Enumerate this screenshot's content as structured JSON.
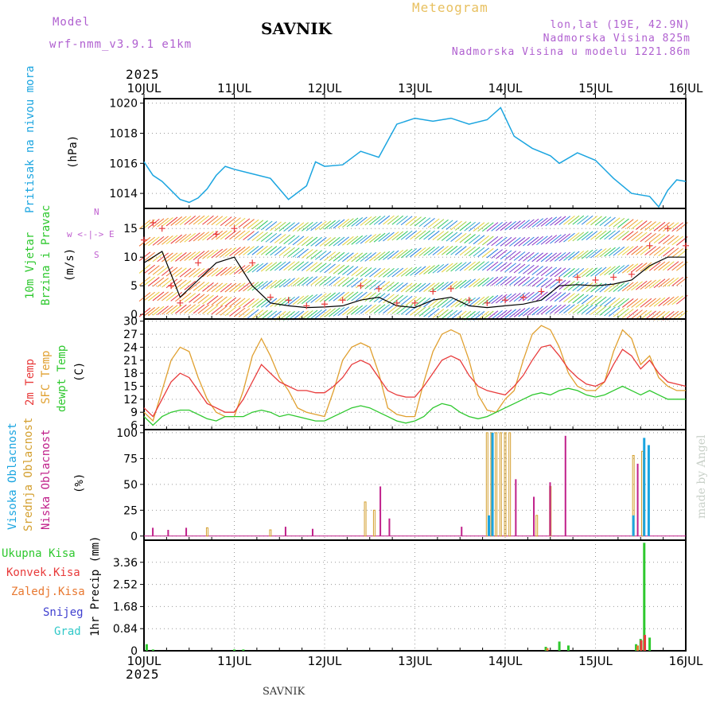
{
  "header": {
    "model_label": "Model",
    "model_name": "wrf-nmm_v3.9.1 e1km",
    "title": "SAVNIK",
    "meteogram": "Meteogram",
    "lonlat": "lon,lat (19E, 42.9N)",
    "altitude": "Nadmorska Visina 825m",
    "model_altitude": "Nadmorska Visina u modelu 1221.86m",
    "footer": "SAVNIK",
    "credit": "made by Angel",
    "year_top": "2025",
    "year_bottom": "2025"
  },
  "colors": {
    "pressure": "#1ba5e0",
    "temp2m": "#e83a3a",
    "sfc": "#e0a030",
    "dew": "#2ec82e",
    "high_cloud": "#1ba5e0",
    "mid_cloud": "#d4a030",
    "low_cloud": "#c0208a",
    "total_rain": "#2ec82e",
    "conv_rain": "#e83a3a",
    "strat_rain": "#e87830",
    "snow": "#4040d0",
    "hail": "#30c8c8",
    "wind_speed": "#000000",
    "gust": "#e83a3a",
    "direction": "#c060d0"
  },
  "labels": {
    "pressure": "Pritisak na nivou mora",
    "pressure_unit": "(hPa)",
    "wind1": "10m Vjetar",
    "wind2": "Brzina i Pravac",
    "wind_unit": "(m/s)",
    "compass": "w <-|-> E",
    "compass_n": "N",
    "compass_s": "S",
    "temp1": "2m Temp",
    "temp2": "SFC Temp",
    "temp3": "dewpt Temp",
    "temp_unit": "(C)",
    "cloud1": "Visoka Oblacnost",
    "cloud2": "Srednja Oblacnost",
    "cloud3": "Niska Oblacnost",
    "cloud_unit": "(%)",
    "precip_axis": "1hr Precip (mm)",
    "rain_total": "Ukupna Kisa",
    "rain_conv": "Konvek.Kisa",
    "rain_strat": "Zaledj.Kisa",
    "snow": "Snijeg",
    "hail": "Grad"
  },
  "chart_data": {
    "type": "line",
    "x_labels": [
      "10JUL",
      "11JUL",
      "12JUL",
      "13JUL",
      "14JUL",
      "15JUL",
      "16JUL"
    ],
    "pressure": {
      "ylim": [
        1013,
        1020.3
      ],
      "ticks": [
        1014,
        1016,
        1018,
        1020
      ],
      "x": [
        0,
        0.1,
        0.2,
        0.3,
        0.4,
        0.5,
        0.6,
        0.7,
        0.8,
        0.9,
        1.0,
        1.2,
        1.4,
        1.6,
        1.8,
        1.9,
        2.0,
        2.2,
        2.4,
        2.6,
        2.8,
        3.0,
        3.2,
        3.4,
        3.6,
        3.8,
        3.95,
        4.1,
        4.3,
        4.5,
        4.6,
        4.8,
        5.0,
        5.2,
        5.4,
        5.6,
        5.7,
        5.8,
        5.9,
        6.0
      ],
      "y": [
        1016.1,
        1015.2,
        1014.8,
        1014.2,
        1013.6,
        1013.4,
        1013.7,
        1014.3,
        1015.2,
        1015.8,
        1015.6,
        1015.3,
        1015.0,
        1013.6,
        1014.5,
        1016.1,
        1015.8,
        1015.9,
        1016.8,
        1016.4,
        1018.6,
        1019.0,
        1018.8,
        1019.0,
        1018.6,
        1018.9,
        1019.7,
        1017.8,
        1017.0,
        1016.5,
        1016.0,
        1016.7,
        1016.2,
        1015.0,
        1014.0,
        1013.8,
        1013.1,
        1014.2,
        1014.9,
        1014.8
      ]
    },
    "wind": {
      "ylim": [
        -0.8,
        18.5
      ],
      "ticks": [
        0,
        5,
        10,
        15
      ],
      "speed_x": [
        0,
        0.2,
        0.4,
        0.6,
        0.8,
        1.0,
        1.2,
        1.4,
        1.6,
        1.8,
        2.0,
        2.2,
        2.4,
        2.6,
        2.8,
        3.0,
        3.2,
        3.4,
        3.6,
        3.8,
        4.0,
        4.2,
        4.4,
        4.6,
        4.8,
        5.0,
        5.2,
        5.4,
        5.6,
        5.8,
        6.0
      ],
      "speed_y": [
        9,
        11,
        3,
        6,
        9,
        10,
        5,
        2,
        1.5,
        1.2,
        1.3,
        1.5,
        2.5,
        3,
        1.5,
        1.2,
        2.5,
        3,
        1.5,
        1.2,
        1.5,
        1.8,
        2.5,
        5,
        5.2,
        5,
        5.3,
        6,
        8.5,
        10,
        10
      ],
      "gust_x": [
        0,
        0.1,
        0.2,
        0.3,
        0.4,
        0.6,
        0.8,
        1.0,
        1.2,
        1.4,
        1.6,
        1.8,
        2.0,
        2.2,
        2.4,
        2.6,
        2.8,
        3.0,
        3.2,
        3.4,
        3.6,
        3.8,
        4.0,
        4.2,
        4.4,
        4.6,
        4.8,
        5.0,
        5.2,
        5.4,
        5.6,
        5.8,
        6.0
      ],
      "gust_y": [
        13,
        16,
        15,
        5,
        2,
        9,
        14,
        15,
        9,
        3,
        2.5,
        1.5,
        1.8,
        2.5,
        5,
        4.5,
        2,
        2,
        4,
        4.5,
        2.5,
        2,
        2.5,
        3,
        4,
        6,
        6.5,
        6,
        6.5,
        7,
        12,
        15,
        12
      ]
    },
    "temperature": {
      "ylim": [
        5,
        30.5
      ],
      "ticks": [
        6,
        9,
        12,
        15,
        18,
        21,
        24,
        27,
        30
      ],
      "x": [
        0,
        0.1,
        0.2,
        0.3,
        0.4,
        0.5,
        0.6,
        0.7,
        0.8,
        0.9,
        1.0,
        1.1,
        1.2,
        1.3,
        1.4,
        1.5,
        1.6,
        1.7,
        1.8,
        1.9,
        2.0,
        2.1,
        2.2,
        2.3,
        2.4,
        2.5,
        2.6,
        2.7,
        2.8,
        2.9,
        3.0,
        3.1,
        3.2,
        3.3,
        3.4,
        3.5,
        3.6,
        3.7,
        3.8,
        3.9,
        4.0,
        4.1,
        4.2,
        4.3,
        4.4,
        4.5,
        4.6,
        4.7,
        4.8,
        4.9,
        5.0,
        5.1,
        5.2,
        5.3,
        5.4,
        5.5,
        5.6,
        5.7,
        5.8,
        5.9,
        6.0
      ],
      "t2m": [
        10,
        8,
        12,
        16,
        18,
        17,
        14,
        11,
        10,
        9,
        9,
        12,
        16,
        20,
        18,
        16,
        15,
        14,
        14,
        13.5,
        13.5,
        15,
        17,
        20,
        21,
        20,
        17,
        14,
        13,
        12.5,
        12.5,
        15,
        18,
        21,
        22,
        21,
        17.5,
        15,
        14,
        13.5,
        13,
        15,
        17.5,
        21,
        24,
        24.5,
        22,
        19,
        17,
        15.5,
        15,
        16,
        20,
        23.5,
        22,
        19,
        21,
        18,
        16,
        15.5,
        15
      ],
      "sfc": [
        9,
        7,
        14,
        21,
        24,
        23,
        17,
        12,
        9,
        8,
        8,
        14,
        22,
        26,
        22,
        17,
        14,
        10,
        9,
        8.5,
        8,
        14,
        21,
        24,
        25,
        24,
        18,
        10,
        8.5,
        8,
        8,
        16,
        23,
        27,
        28,
        27,
        21,
        13,
        9.5,
        9,
        12,
        14,
        21,
        27,
        29,
        28,
        24,
        18,
        15,
        14,
        14,
        16,
        23,
        28,
        26,
        20,
        22,
        17,
        15,
        14,
        14
      ],
      "dew": [
        8,
        6,
        8,
        9,
        9.5,
        9.5,
        8.5,
        7.5,
        7,
        8,
        8,
        8,
        9,
        9.5,
        9,
        8,
        8.5,
        8,
        7.5,
        7,
        7,
        8,
        9,
        10,
        10.5,
        10,
        9,
        8,
        7,
        6.5,
        7,
        8,
        10,
        11,
        10.5,
        9,
        8,
        7.5,
        8,
        9,
        10,
        11,
        12,
        13,
        13.5,
        13,
        14,
        14.5,
        14,
        13,
        12.5,
        13,
        14,
        15,
        14,
        13,
        14,
        13,
        12,
        12,
        12
      ]
    },
    "clouds": {
      "ylim": [
        -4,
        103
      ],
      "ticks": [
        0,
        25,
        50,
        75,
        100
      ],
      "high": [
        {
          "x": 3.78,
          "v": 20
        },
        {
          "x": 3.82,
          "v": 100
        },
        {
          "x": 5.38,
          "v": 20
        },
        {
          "x": 5.5,
          "v": 95
        },
        {
          "x": 5.55,
          "v": 88
        }
      ],
      "mid": [
        {
          "x": 0.7,
          "v": 8
        },
        {
          "x": 1.4,
          "v": 6
        },
        {
          "x": 2.45,
          "v": 33
        },
        {
          "x": 2.55,
          "v": 25
        },
        {
          "x": 3.8,
          "v": 100
        },
        {
          "x": 3.85,
          "v": 100
        },
        {
          "x": 3.9,
          "v": 100
        },
        {
          "x": 3.95,
          "v": 100
        },
        {
          "x": 4.0,
          "v": 100
        },
        {
          "x": 4.05,
          "v": 100
        },
        {
          "x": 4.35,
          "v": 20
        },
        {
          "x": 4.5,
          "v": 48
        },
        {
          "x": 5.42,
          "v": 78
        },
        {
          "x": 5.52,
          "v": 82
        }
      ],
      "low": [
        {
          "x": 0.08,
          "v": 8
        },
        {
          "x": 0.25,
          "v": 6
        },
        {
          "x": 0.45,
          "v": 8
        },
        {
          "x": 1.55,
          "v": 9
        },
        {
          "x": 1.85,
          "v": 7
        },
        {
          "x": 2.6,
          "v": 48
        },
        {
          "x": 2.7,
          "v": 17
        },
        {
          "x": 3.5,
          "v": 9
        },
        {
          "x": 4.1,
          "v": 55
        },
        {
          "x": 4.3,
          "v": 38
        },
        {
          "x": 4.48,
          "v": 52
        },
        {
          "x": 4.65,
          "v": 97
        },
        {
          "x": 5.45,
          "v": 70
        }
      ]
    },
    "precip": {
      "ylim": [
        0,
        4.2
      ],
      "ticks": [
        0,
        0.84,
        1.68,
        2.52,
        3.36
      ],
      "total": [
        {
          "x": 0.03,
          "v": 0.25
        },
        {
          "x": 0.1,
          "v": 0.05
        },
        {
          "x": 1.0,
          "v": 0.05
        },
        {
          "x": 1.1,
          "v": 0.05
        },
        {
          "x": 4.45,
          "v": 0.15
        },
        {
          "x": 4.6,
          "v": 0.35
        },
        {
          "x": 4.7,
          "v": 0.2
        },
        {
          "x": 5.45,
          "v": 0.25
        },
        {
          "x": 5.5,
          "v": 0.45
        },
        {
          "x": 5.54,
          "v": 4.1
        },
        {
          "x": 5.6,
          "v": 0.5
        }
      ],
      "conv": [
        {
          "x": 5.52,
          "v": 0.4
        },
        {
          "x": 5.56,
          "v": 0.6
        }
      ],
      "strat": [
        {
          "x": 4.48,
          "v": 0.1
        },
        {
          "x": 5.48,
          "v": 0.2
        }
      ]
    }
  }
}
